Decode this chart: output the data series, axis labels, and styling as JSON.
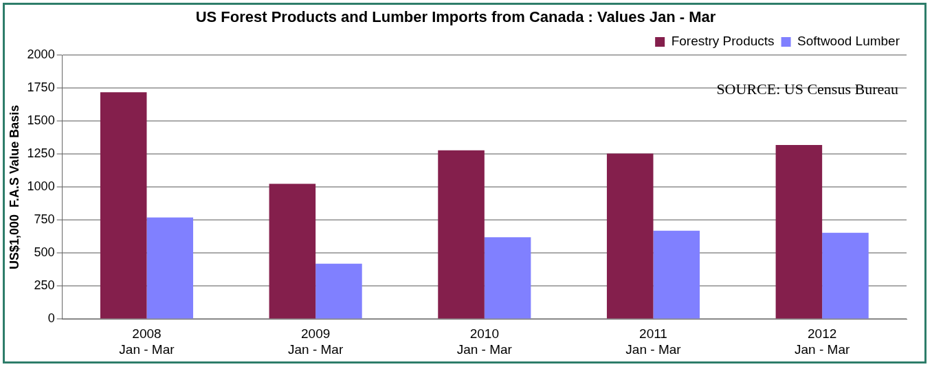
{
  "chart_data": {
    "type": "bar",
    "title": "US Forest Products and Lumber Imports from Canada : Values Jan - Mar",
    "ylabel": "US$1,000  F.A.S Value Basis",
    "categories": [
      "2008\nJan - Mar",
      "2009\nJan - Mar",
      "2010\nJan - Mar",
      "2011\nJan - Mar",
      "2012\nJan - Mar"
    ],
    "series": [
      {
        "name": "Forestry Products",
        "color": "#841f4c",
        "values": [
          1720,
          1025,
          1280,
          1255,
          1320
        ]
      },
      {
        "name": "Softwood Lumber",
        "color": "#8080ff",
        "values": [
          770,
          420,
          620,
          670,
          655
        ]
      }
    ],
    "ylim": [
      0,
      2000
    ],
    "yticks": [
      0,
      250,
      500,
      750,
      1000,
      1250,
      1500,
      1750,
      2000
    ],
    "grid": "y",
    "legend": "top right",
    "annotations": [
      "SOURCE: US Census Bureau"
    ]
  }
}
